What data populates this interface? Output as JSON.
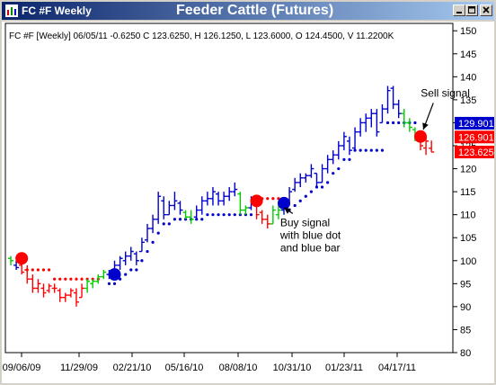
{
  "window": {
    "title": "FC #F Weekly",
    "chart_title": "Feeder Cattle (Futures)",
    "controls": [
      "minimize",
      "maximize",
      "close"
    ]
  },
  "info_line": "FC #F [Weekly] 06/05/11  -0.6250 C 123.6250, H 126.1250, L 123.6000, O 124.4500, V 11.2200K",
  "colors": {
    "bull": "#00cc00",
    "bear": "#ff0000",
    "blue": "#0000cc",
    "grid": "#000000"
  },
  "chart_data": {
    "type": "ohlc-bar",
    "title": "Feeder Cattle (Futures)",
    "interval": "weekly",
    "x_tick_labels": [
      "09/06/09",
      "11/29/09",
      "02/21/10",
      "05/16/10",
      "08/08/10",
      "10/31/10",
      "01/23/11",
      "04/17/11"
    ],
    "ylim": [
      80,
      152
    ],
    "y_ticks": [
      80,
      85,
      90,
      95,
      100,
      105,
      110,
      115,
      120,
      125,
      130,
      135,
      140,
      145,
      150
    ],
    "price_labels": [
      {
        "value": 129.901,
        "text": "129.901",
        "color": "#0000cc"
      },
      {
        "value": 126.901,
        "text": "126.901",
        "color": "#ff0000"
      },
      {
        "value": 123.625,
        "text": "123.625",
        "color": "#ff0000"
      }
    ],
    "bars": [
      {
        "h": 101,
        "l": 99,
        "o": 100.5,
        "c": 100,
        "color": "green"
      },
      {
        "h": 100,
        "l": 98,
        "o": 99,
        "c": 98.5,
        "color": "blue"
      },
      {
        "h": 100,
        "l": 97,
        "o": 99,
        "c": 97.5,
        "color": "red"
      },
      {
        "h": 99,
        "l": 95,
        "o": 98,
        "c": 96,
        "color": "red"
      },
      {
        "h": 97,
        "l": 93,
        "o": 96,
        "c": 94,
        "color": "red"
      },
      {
        "h": 96,
        "l": 93,
        "o": 94,
        "c": 95,
        "color": "red"
      },
      {
        "h": 95,
        "l": 92,
        "o": 94,
        "c": 93,
        "color": "red"
      },
      {
        "h": 95,
        "l": 93,
        "o": 93.5,
        "c": 94.5,
        "color": "red"
      },
      {
        "h": 95,
        "l": 93,
        "o": 94,
        "c": 94,
        "color": "red"
      },
      {
        "h": 94,
        "l": 91,
        "o": 93.5,
        "c": 92,
        "color": "red"
      },
      {
        "h": 93,
        "l": 91,
        "o": 92,
        "c": 92.5,
        "color": "red"
      },
      {
        "h": 94,
        "l": 92,
        "o": 92.5,
        "c": 93.5,
        "color": "red"
      },
      {
        "h": 94,
        "l": 90,
        "o": 93,
        "c": 91,
        "color": "red"
      },
      {
        "h": 95,
        "l": 92,
        "o": 92,
        "c": 94,
        "color": "red"
      },
      {
        "h": 96,
        "l": 93,
        "o": 94,
        "c": 95.5,
        "color": "green"
      },
      {
        "h": 96,
        "l": 94,
        "o": 95,
        "c": 95.5,
        "color": "green"
      },
      {
        "h": 97,
        "l": 95,
        "o": 95.5,
        "c": 96.5,
        "color": "green"
      },
      {
        "h": 98,
        "l": 96,
        "o": 96.5,
        "c": 97.5,
        "color": "green"
      },
      {
        "h": 98,
        "l": 96,
        "o": 97,
        "c": 97,
        "color": "blue"
      },
      {
        "h": 100,
        "l": 97,
        "o": 97.5,
        "c": 99,
        "color": "blue"
      },
      {
        "h": 101,
        "l": 98,
        "o": 99,
        "c": 100.5,
        "color": "blue"
      },
      {
        "h": 102,
        "l": 99,
        "o": 100,
        "c": 101,
        "color": "blue"
      },
      {
        "h": 103,
        "l": 100,
        "o": 101,
        "c": 102,
        "color": "blue"
      },
      {
        "h": 102,
        "l": 99,
        "o": 101.5,
        "c": 100,
        "color": "blue"
      },
      {
        "h": 105,
        "l": 102,
        "o": 102,
        "c": 104,
        "color": "blue"
      },
      {
        "h": 108,
        "l": 104,
        "o": 104.5,
        "c": 107,
        "color": "blue"
      },
      {
        "h": 110,
        "l": 106,
        "o": 107,
        "c": 109,
        "color": "blue"
      },
      {
        "h": 115,
        "l": 108,
        "o": 109,
        "c": 114,
        "color": "blue"
      },
      {
        "h": 114,
        "l": 109,
        "o": 113,
        "c": 110,
        "color": "blue"
      },
      {
        "h": 113,
        "l": 110,
        "o": 110,
        "c": 112,
        "color": "blue"
      },
      {
        "h": 115,
        "l": 111,
        "o": 112,
        "c": 113,
        "color": "blue"
      },
      {
        "h": 113,
        "l": 110,
        "o": 112.5,
        "c": 111,
        "color": "blue"
      },
      {
        "h": 111,
        "l": 109,
        "o": 110.5,
        "c": 109.5,
        "color": "green"
      },
      {
        "h": 111,
        "l": 108,
        "o": 109.5,
        "c": 109,
        "color": "green"
      },
      {
        "h": 112,
        "l": 109,
        "o": 109.5,
        "c": 111,
        "color": "blue"
      },
      {
        "h": 114,
        "l": 110,
        "o": 111,
        "c": 113,
        "color": "blue"
      },
      {
        "h": 115,
        "l": 112,
        "o": 113,
        "c": 113.5,
        "color": "blue"
      },
      {
        "h": 116,
        "l": 112,
        "o": 113.5,
        "c": 115,
        "color": "blue"
      },
      {
        "h": 115,
        "l": 112,
        "o": 114.5,
        "c": 113,
        "color": "blue"
      },
      {
        "h": 115,
        "l": 112,
        "o": 113,
        "c": 114,
        "color": "blue"
      },
      {
        "h": 116,
        "l": 113,
        "o": 114,
        "c": 115,
        "color": "blue"
      },
      {
        "h": 117,
        "l": 114,
        "o": 115,
        "c": 115.5,
        "color": "blue"
      },
      {
        "h": 115,
        "l": 110,
        "o": 114.5,
        "c": 111,
        "color": "green"
      },
      {
        "h": 112,
        "l": 110,
        "o": 111,
        "c": 111.5,
        "color": "green"
      },
      {
        "h": 114,
        "l": 111,
        "o": 111.5,
        "c": 113,
        "color": "blue"
      },
      {
        "h": 114,
        "l": 109,
        "o": 113,
        "c": 110,
        "color": "red"
      },
      {
        "h": 111,
        "l": 108,
        "o": 110.5,
        "c": 109,
        "color": "red"
      },
      {
        "h": 110,
        "l": 107,
        "o": 109,
        "c": 108,
        "color": "red"
      },
      {
        "h": 112,
        "l": 108,
        "o": 108,
        "c": 111,
        "color": "green"
      },
      {
        "h": 112,
        "l": 109,
        "o": 110,
        "c": 111,
        "color": "green"
      },
      {
        "h": 113,
        "l": 110,
        "o": 111,
        "c": 112.5,
        "color": "blue"
      },
      {
        "h": 116,
        "l": 112,
        "o": 112.5,
        "c": 115,
        "color": "blue"
      },
      {
        "h": 118,
        "l": 115,
        "o": 115.5,
        "c": 117,
        "color": "blue"
      },
      {
        "h": 119,
        "l": 116,
        "o": 117,
        "c": 118,
        "color": "blue"
      },
      {
        "h": 119,
        "l": 117,
        "o": 118,
        "c": 118.5,
        "color": "blue"
      },
      {
        "h": 121,
        "l": 118,
        "o": 118.5,
        "c": 120,
        "color": "blue"
      },
      {
        "h": 119,
        "l": 116,
        "o": 119,
        "c": 117,
        "color": "blue"
      },
      {
        "h": 121,
        "l": 117,
        "o": 117,
        "c": 120,
        "color": "blue"
      },
      {
        "h": 123,
        "l": 119,
        "o": 120,
        "c": 122,
        "color": "blue"
      },
      {
        "h": 124,
        "l": 121,
        "o": 122,
        "c": 123,
        "color": "blue"
      },
      {
        "h": 126,
        "l": 122,
        "o": 123,
        "c": 125,
        "color": "blue"
      },
      {
        "h": 128,
        "l": 124,
        "o": 125,
        "c": 127,
        "color": "blue"
      },
      {
        "h": 127,
        "l": 123,
        "o": 126,
        "c": 124,
        "color": "blue"
      },
      {
        "h": 129,
        "l": 124,
        "o": 124.5,
        "c": 128,
        "color": "blue"
      },
      {
        "h": 131,
        "l": 127,
        "o": 128,
        "c": 130,
        "color": "blue"
      },
      {
        "h": 132,
        "l": 128,
        "o": 130,
        "c": 131,
        "color": "blue"
      },
      {
        "h": 133,
        "l": 129,
        "o": 131,
        "c": 132,
        "color": "blue"
      },
      {
        "h": 133,
        "l": 127,
        "o": 132,
        "c": 128,
        "color": "blue"
      },
      {
        "h": 134,
        "l": 130,
        "o": 130,
        "c": 133,
        "color": "blue"
      },
      {
        "h": 138,
        "l": 132,
        "o": 133,
        "c": 137,
        "color": "blue"
      },
      {
        "h": 138,
        "l": 133,
        "o": 137.5,
        "c": 134,
        "color": "blue"
      },
      {
        "h": 135,
        "l": 131,
        "o": 134,
        "c": 132,
        "color": "blue"
      },
      {
        "h": 133,
        "l": 129,
        "o": 132,
        "c": 130,
        "color": "green"
      },
      {
        "h": 131,
        "l": 128,
        "o": 130,
        "c": 129,
        "color": "green"
      },
      {
        "h": 129,
        "l": 126,
        "o": 128.5,
        "c": 127,
        "color": "green"
      },
      {
        "h": 128,
        "l": 124,
        "o": 127,
        "c": 125,
        "color": "red"
      },
      {
        "h": 127,
        "l": 123,
        "o": 124.5,
        "c": 126,
        "color": "red"
      },
      {
        "h": 126.125,
        "l": 123.6,
        "o": 124.45,
        "c": 123.625,
        "color": "red"
      }
    ],
    "stops": [
      {
        "i": 3,
        "y": 98,
        "color": "red"
      },
      {
        "i": 4,
        "y": 98,
        "color": "red"
      },
      {
        "i": 5,
        "y": 98,
        "color": "red"
      },
      {
        "i": 6,
        "y": 98,
        "color": "red"
      },
      {
        "i": 7,
        "y": 98,
        "color": "red"
      },
      {
        "i": 8,
        "y": 96,
        "color": "red"
      },
      {
        "i": 9,
        "y": 96,
        "color": "red"
      },
      {
        "i": 10,
        "y": 96,
        "color": "red"
      },
      {
        "i": 11,
        "y": 96,
        "color": "red"
      },
      {
        "i": 12,
        "y": 96,
        "color": "red"
      },
      {
        "i": 13,
        "y": 96,
        "color": "red"
      },
      {
        "i": 14,
        "y": 96,
        "color": "red"
      },
      {
        "i": 15,
        "y": 96,
        "color": "red"
      },
      {
        "i": 16,
        "y": 96,
        "color": "red"
      },
      {
        "i": 18,
        "y": 95,
        "color": "blue"
      },
      {
        "i": 19,
        "y": 95,
        "color": "blue"
      },
      {
        "i": 20,
        "y": 96,
        "color": "blue"
      },
      {
        "i": 21,
        "y": 97,
        "color": "blue"
      },
      {
        "i": 22,
        "y": 98,
        "color": "blue"
      },
      {
        "i": 23,
        "y": 98,
        "color": "blue"
      },
      {
        "i": 24,
        "y": 100,
        "color": "blue"
      },
      {
        "i": 25,
        "y": 102,
        "color": "blue"
      },
      {
        "i": 26,
        "y": 104,
        "color": "blue"
      },
      {
        "i": 27,
        "y": 106,
        "color": "blue"
      },
      {
        "i": 28,
        "y": 108,
        "color": "blue"
      },
      {
        "i": 29,
        "y": 108,
        "color": "blue"
      },
      {
        "i": 30,
        "y": 109,
        "color": "blue"
      },
      {
        "i": 31,
        "y": 109,
        "color": "blue"
      },
      {
        "i": 32,
        "y": 109,
        "color": "blue"
      },
      {
        "i": 33,
        "y": 109,
        "color": "blue"
      },
      {
        "i": 34,
        "y": 109,
        "color": "blue"
      },
      {
        "i": 35,
        "y": 109,
        "color": "blue"
      },
      {
        "i": 36,
        "y": 110,
        "color": "blue"
      },
      {
        "i": 37,
        "y": 110,
        "color": "blue"
      },
      {
        "i": 38,
        "y": 110,
        "color": "blue"
      },
      {
        "i": 39,
        "y": 110,
        "color": "blue"
      },
      {
        "i": 40,
        "y": 110,
        "color": "blue"
      },
      {
        "i": 41,
        "y": 110,
        "color": "blue"
      },
      {
        "i": 42,
        "y": 110,
        "color": "blue"
      },
      {
        "i": 43,
        "y": 110,
        "color": "blue"
      },
      {
        "i": 44,
        "y": 110,
        "color": "blue"
      },
      {
        "i": 46,
        "y": 113.5,
        "color": "red"
      },
      {
        "i": 47,
        "y": 113.5,
        "color": "red"
      },
      {
        "i": 48,
        "y": 113.5,
        "color": "red"
      },
      {
        "i": 49,
        "y": 113.5,
        "color": "red"
      },
      {
        "i": 51,
        "y": 111,
        "color": "blue"
      },
      {
        "i": 52,
        "y": 112,
        "color": "blue"
      },
      {
        "i": 53,
        "y": 113,
        "color": "blue"
      },
      {
        "i": 54,
        "y": 114,
        "color": "blue"
      },
      {
        "i": 55,
        "y": 115,
        "color": "blue"
      },
      {
        "i": 56,
        "y": 116,
        "color": "blue"
      },
      {
        "i": 57,
        "y": 116,
        "color": "blue"
      },
      {
        "i": 58,
        "y": 117,
        "color": "blue"
      },
      {
        "i": 59,
        "y": 119,
        "color": "blue"
      },
      {
        "i": 60,
        "y": 120,
        "color": "blue"
      },
      {
        "i": 61,
        "y": 122,
        "color": "blue"
      },
      {
        "i": 62,
        "y": 122,
        "color": "blue"
      },
      {
        "i": 63,
        "y": 124,
        "color": "blue"
      },
      {
        "i": 64,
        "y": 124,
        "color": "blue"
      },
      {
        "i": 65,
        "y": 124,
        "color": "blue"
      },
      {
        "i": 66,
        "y": 124,
        "color": "blue"
      },
      {
        "i": 67,
        "y": 124,
        "color": "blue"
      },
      {
        "i": 68,
        "y": 124,
        "color": "blue"
      },
      {
        "i": 69,
        "y": 130,
        "color": "blue"
      },
      {
        "i": 70,
        "y": 130,
        "color": "blue"
      },
      {
        "i": 71,
        "y": 130,
        "color": "blue"
      },
      {
        "i": 72,
        "y": 130,
        "color": "blue"
      },
      {
        "i": 73,
        "y": 130,
        "color": "blue"
      },
      {
        "i": 74,
        "y": 130,
        "color": "blue"
      }
    ],
    "signals": [
      {
        "i": 2,
        "y": 100.5,
        "color": "red"
      },
      {
        "i": 19,
        "y": 97,
        "color": "blue"
      },
      {
        "i": 45,
        "y": 113,
        "color": "red"
      },
      {
        "i": 50,
        "y": 112.5,
        "color": "blue"
      },
      {
        "i": 75,
        "y": 127,
        "color": "red"
      }
    ],
    "annotations": [
      {
        "lines": [
          "Buy signal",
          "with blue dot",
          "and blue bar"
        ],
        "anchor_i": 48,
        "anchor_y": 108.5,
        "target_i": 50,
        "target_y": 111.5
      },
      {
        "lines": [
          "Sell signal"
        ],
        "anchor_i": 78,
        "anchor_y": 134.5,
        "target_i": 75.5,
        "target_y": 128.5
      }
    ]
  }
}
